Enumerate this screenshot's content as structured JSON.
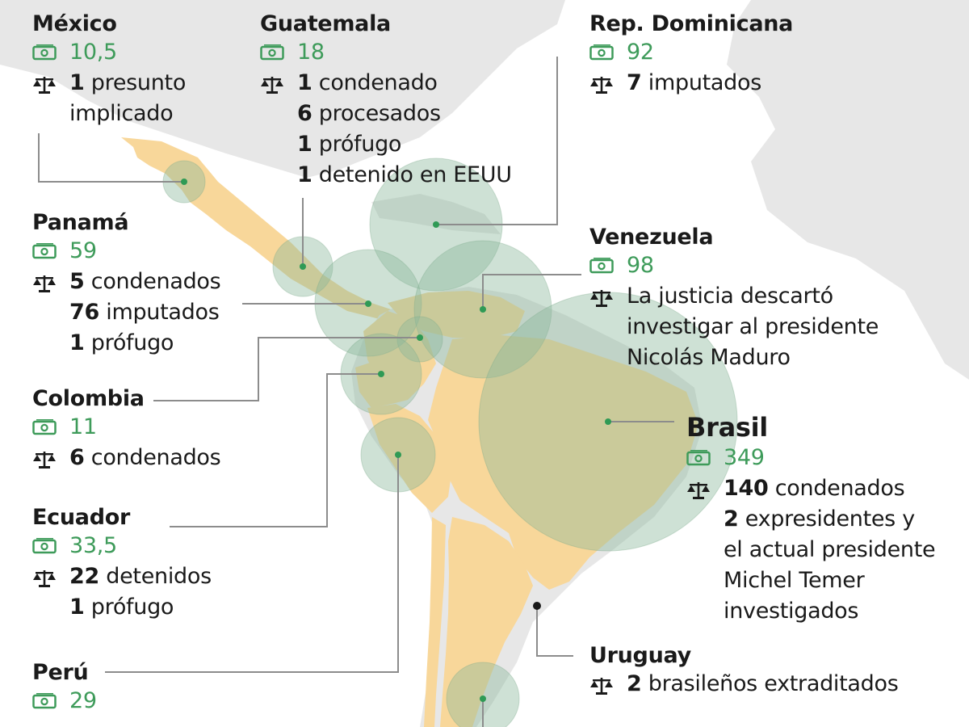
{
  "colors": {
    "ocean": "#ffffff",
    "land_other": "#e7e7e7",
    "land_highlight": "#f8d79a",
    "bubble_fill": "#8ab79a",
    "bubble_stroke": "#7aa88a",
    "dot": "#2f9a55",
    "amount_text": "#3e9b5a",
    "leader_line": "#8c8c8c"
  },
  "icons": {
    "amount": "banknote-icon",
    "justice": "scales-of-justice-icon"
  },
  "countries": {
    "mexico": {
      "name": "México",
      "amount": "10,5",
      "lines": [
        {
          "num": "1",
          "text": " presunto"
        },
        {
          "num": "",
          "text": "implicado"
        }
      ]
    },
    "guatemala": {
      "name": "Guatemala",
      "amount": "18",
      "lines": [
        {
          "num": "1",
          "text": " condenado"
        },
        {
          "num": "6",
          "text": " procesados"
        },
        {
          "num": "1",
          "text": " prófugo"
        },
        {
          "num": "1",
          "text": " detenido en EEUU"
        }
      ]
    },
    "rep_dominicana": {
      "name": "Rep. Dominicana",
      "amount": "92",
      "lines": [
        {
          "num": "7",
          "text": " imputados"
        }
      ]
    },
    "panama": {
      "name": "Panamá",
      "amount": "59",
      "lines": [
        {
          "num": "5",
          "text": " condenados"
        },
        {
          "num": "76",
          "text": " imputados"
        },
        {
          "num": "1",
          "text": " prófugo"
        }
      ]
    },
    "venezuela": {
      "name": "Venezuela",
      "amount": "98",
      "lines": [
        {
          "num": "",
          "text": "La justicia descartó"
        },
        {
          "num": "",
          "text": "investigar al presidente"
        },
        {
          "num": "",
          "text": "Nicolás Maduro"
        }
      ]
    },
    "colombia": {
      "name": "Colombia",
      "amount": "11",
      "lines": [
        {
          "num": "6",
          "text": " condenados"
        }
      ]
    },
    "brasil": {
      "name": "Brasil",
      "amount": "349",
      "lines": [
        {
          "num": "140",
          "text": " condenados"
        },
        {
          "num": "2",
          "text": " expresidentes y"
        },
        {
          "num": "",
          "text": "el actual presidente"
        },
        {
          "num": "",
          "text": "Michel Temer"
        },
        {
          "num": "",
          "text": "investigados"
        }
      ]
    },
    "ecuador": {
      "name": "Ecuador",
      "amount": "33,5",
      "lines": [
        {
          "num": "22",
          "text": " detenidos"
        },
        {
          "num": "1",
          "text": " prófugo"
        }
      ]
    },
    "uruguay": {
      "name": "Uruguay",
      "lines": [
        {
          "num": "2",
          "text": " brasileños extraditados"
        }
      ]
    },
    "peru": {
      "name": "Perú",
      "amount": "29",
      "lines": []
    }
  }
}
